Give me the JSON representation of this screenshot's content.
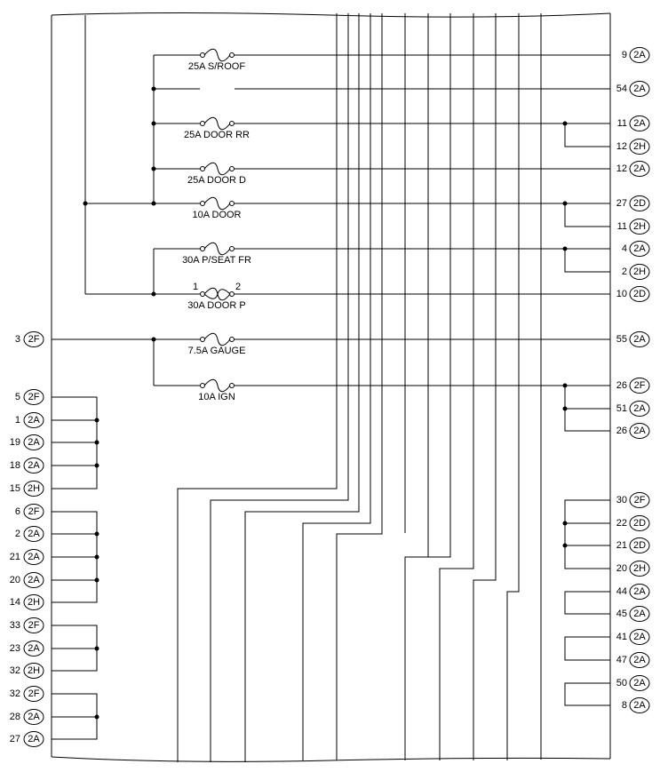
{
  "fuses": [
    {
      "label": "25A S/ROOF"
    },
    {
      "label": "25A DOOR RR"
    },
    {
      "label": "25A DOOR D"
    },
    {
      "label": "10A DOOR"
    },
    {
      "label": "30A P/SEAT FR"
    },
    {
      "label": "30A DOOR P",
      "pin_a": "1",
      "pin_b": "2"
    },
    {
      "label": "7.5A GAUGE"
    },
    {
      "label": "10A IGN"
    }
  ],
  "left_pins": [
    {
      "pin": "3",
      "connector": "2F"
    },
    {
      "pin": "5",
      "connector": "2F"
    },
    {
      "pin": "1",
      "connector": "2A"
    },
    {
      "pin": "19",
      "connector": "2A"
    },
    {
      "pin": "18",
      "connector": "2A"
    },
    {
      "pin": "15",
      "connector": "2H"
    },
    {
      "pin": "6",
      "connector": "2F"
    },
    {
      "pin": "2",
      "connector": "2A"
    },
    {
      "pin": "21",
      "connector": "2A"
    },
    {
      "pin": "20",
      "connector": "2A"
    },
    {
      "pin": "14",
      "connector": "2H"
    },
    {
      "pin": "33",
      "connector": "2F"
    },
    {
      "pin": "23",
      "connector": "2A"
    },
    {
      "pin": "32",
      "connector": "2H"
    },
    {
      "pin": "32",
      "connector": "2F"
    },
    {
      "pin": "28",
      "connector": "2A"
    },
    {
      "pin": "27",
      "connector": "2A"
    }
  ],
  "right_pins": [
    {
      "pin": "9",
      "connector": "2A"
    },
    {
      "pin": "54",
      "connector": "2A"
    },
    {
      "pin": "11",
      "connector": "2A"
    },
    {
      "pin": "12",
      "connector": "2H"
    },
    {
      "pin": "12",
      "connector": "2A"
    },
    {
      "pin": "27",
      "connector": "2D"
    },
    {
      "pin": "11",
      "connector": "2H"
    },
    {
      "pin": "4",
      "connector": "2A"
    },
    {
      "pin": "2",
      "connector": "2H"
    },
    {
      "pin": "10",
      "connector": "2D"
    },
    {
      "pin": "55",
      "connector": "2A"
    },
    {
      "pin": "26",
      "connector": "2F"
    },
    {
      "pin": "51",
      "connector": "2A"
    },
    {
      "pin": "26",
      "connector": "2A"
    },
    {
      "pin": "30",
      "connector": "2F"
    },
    {
      "pin": "22",
      "connector": "2D"
    },
    {
      "pin": "21",
      "connector": "2D"
    },
    {
      "pin": "20",
      "connector": "2H"
    },
    {
      "pin": "44",
      "connector": "2A"
    },
    {
      "pin": "45",
      "connector": "2A"
    },
    {
      "pin": "41",
      "connector": "2A"
    },
    {
      "pin": "47",
      "connector": "2A"
    },
    {
      "pin": "50",
      "connector": "2A"
    },
    {
      "pin": "8",
      "connector": "2A"
    }
  ]
}
